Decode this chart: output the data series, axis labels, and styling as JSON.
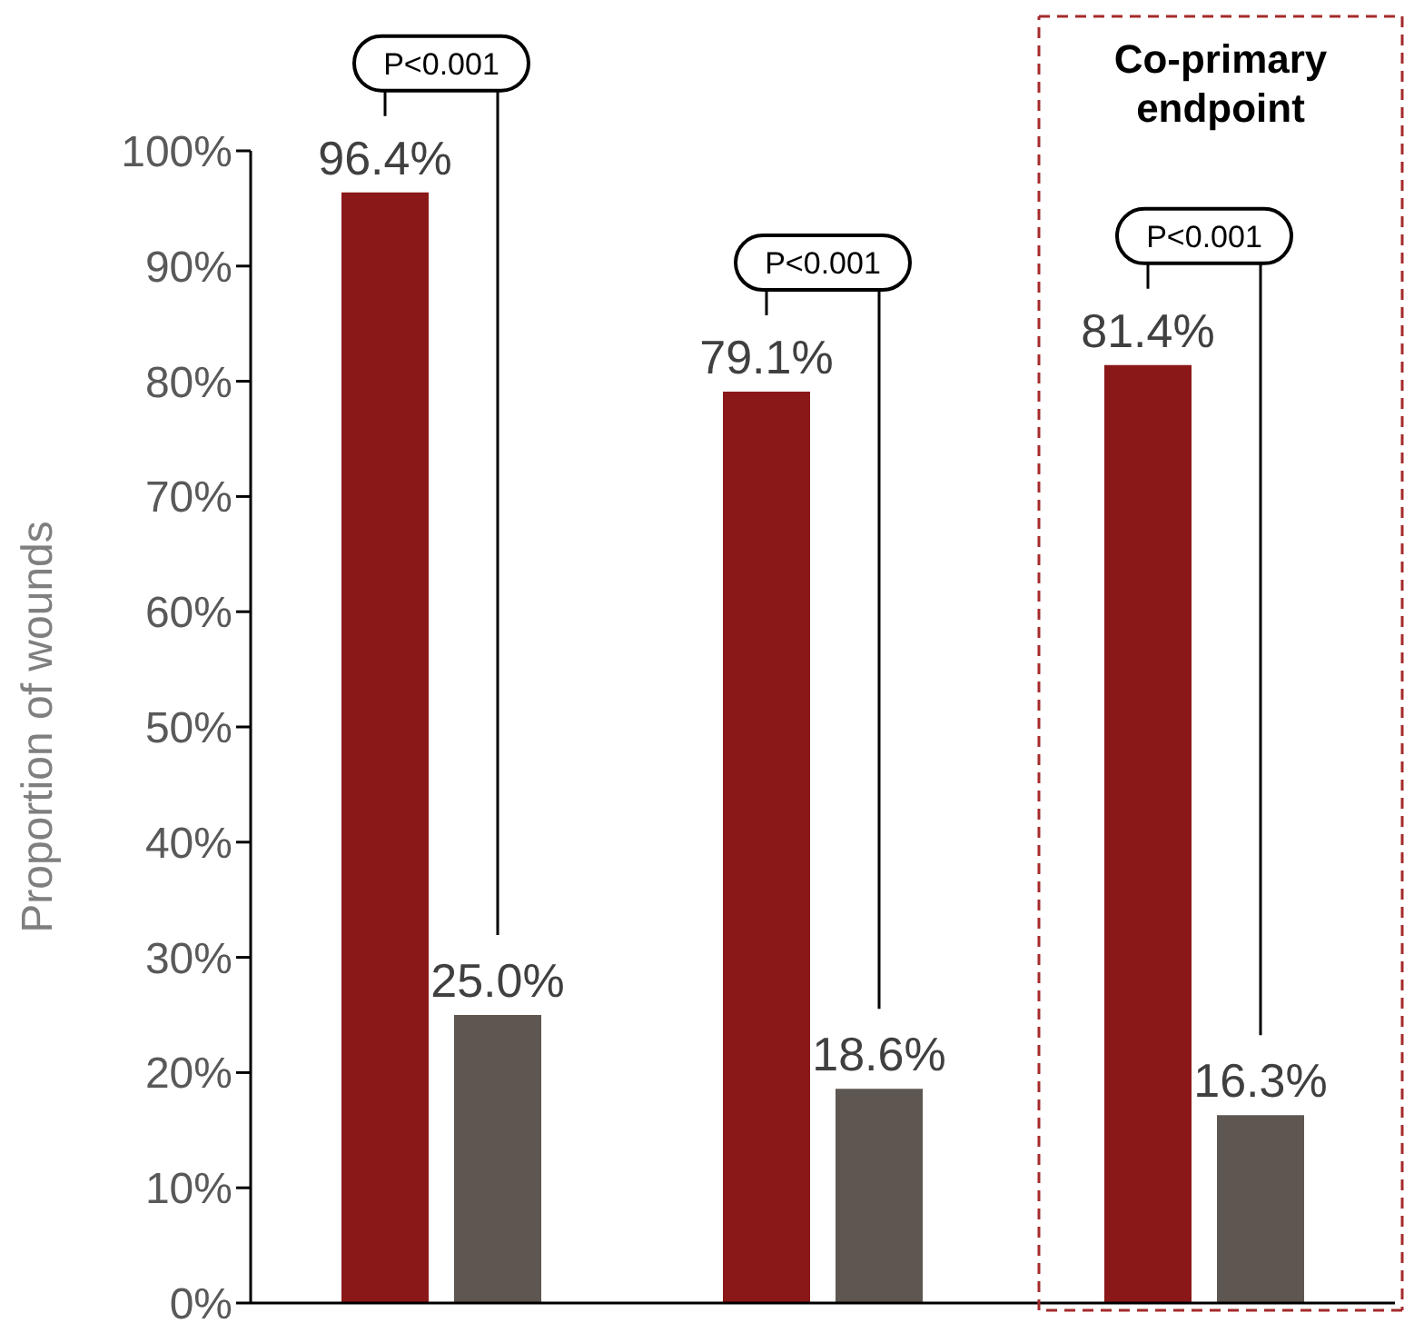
{
  "chart_data": {
    "type": "bar",
    "ylabel": "Proportion of wounds",
    "categories": [
      null,
      null,
      null
    ],
    "series": [
      {
        "color": "#8b1818",
        "values": [
          96.4,
          79.1,
          81.4
        ],
        "value_labels": [
          "96.4%",
          "79.1%",
          "81.4%"
        ]
      },
      {
        "color": "#5e5650",
        "values": [
          25.0,
          18.6,
          16.3
        ],
        "value_labels": [
          "25.0%",
          "18.6%",
          "16.3%"
        ]
      }
    ],
    "ylim": [
      0,
      100
    ],
    "yticks": [
      {
        "value": 0,
        "label": "0%"
      },
      {
        "value": 10,
        "label": "10%"
      },
      {
        "value": 20,
        "label": "20%"
      },
      {
        "value": 30,
        "label": "30%"
      },
      {
        "value": 40,
        "label": "40%"
      },
      {
        "value": 50,
        "label": "50%"
      },
      {
        "value": 60,
        "label": "60%"
      },
      {
        "value": 70,
        "label": "70%"
      },
      {
        "value": 80,
        "label": "80%"
      },
      {
        "value": 90,
        "label": "90%"
      },
      {
        "value": 100,
        "label": "100%"
      }
    ],
    "annotations": [
      "P<0.001",
      "P<0.001",
      "P<0.001",
      "Co-primary endpoint"
    ]
  }
}
